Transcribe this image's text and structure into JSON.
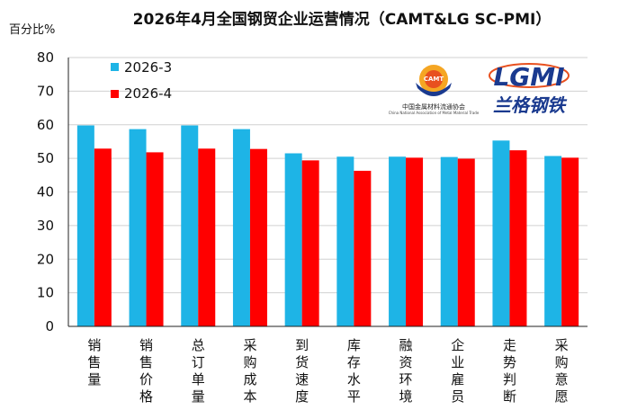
{
  "chart_data": {
    "type": "bar",
    "title": "2026年4月全国钢贸企业运营情况（CAMT&LG SC-PMI）",
    "ylabel": "百分比%",
    "ylim": [
      0,
      80
    ],
    "yticks": [
      "0",
      "10",
      "20",
      "30",
      "40",
      "50",
      "60",
      "70",
      "80"
    ],
    "grid": true,
    "legend_position": "top-left",
    "categories": [
      "销售量",
      "销售价格",
      "总订单量",
      "采购成本",
      "到货速度",
      "库存水平",
      "融资环境",
      "企业雇员",
      "走势判断",
      "采购意愿"
    ],
    "series": [
      {
        "name": "2026-3",
        "color": "#1EB4E6",
        "values": [
          59.8,
          58.7,
          59.8,
          58.7,
          51.5,
          50.5,
          50.5,
          50.4,
          55.3,
          50.7
        ]
      },
      {
        "name": "2026-4",
        "color": "#FF0000",
        "values": [
          52.9,
          51.8,
          52.9,
          52.8,
          49.4,
          46.3,
          50.2,
          49.9,
          52.4,
          50.2
        ]
      }
    ]
  },
  "logos": {
    "camt_caption_cn": "中国金属材料流通协会",
    "camt_caption_en": "China National Association of Metal Material Trade",
    "camt_badge": "CAMT",
    "lgmi_mark": "LGMI",
    "lgmi_cn": "兰格钢铁"
  }
}
